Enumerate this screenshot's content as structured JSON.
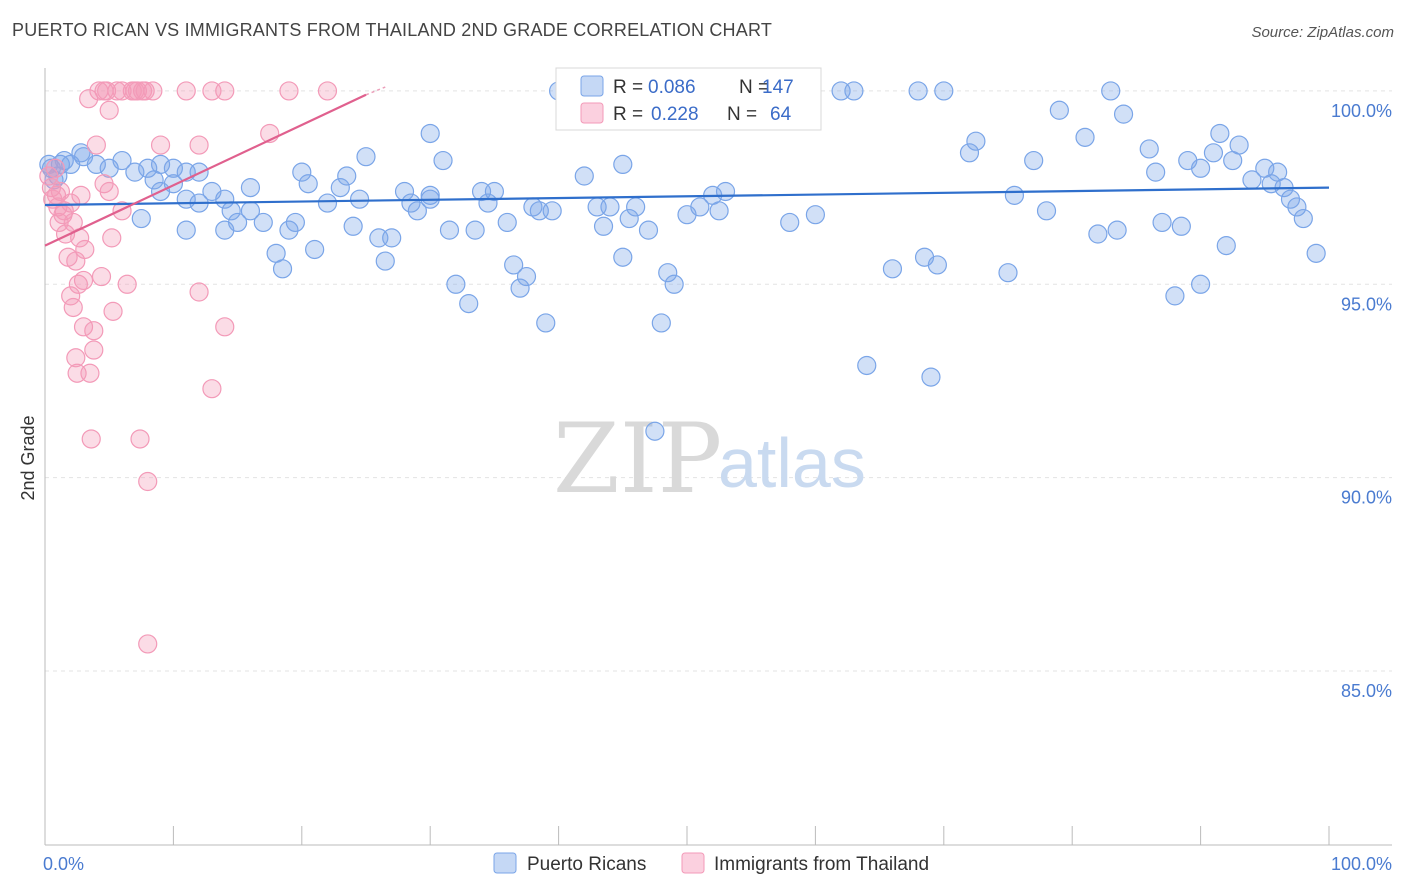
{
  "title": "PUERTO RICAN VS IMMIGRANTS FROM THAILAND 2ND GRADE CORRELATION CHART",
  "source": "Source: ZipAtlas.com",
  "watermark": {
    "zip": "ZIP",
    "atlas": "atlas"
  },
  "chart_data": {
    "type": "scatter",
    "ylabel": "2nd Grade",
    "xlim": [
      0,
      100
    ],
    "ylim": [
      80.5,
      100.8
    ],
    "x_tick_labels": [
      {
        "v": 0,
        "label": "0.0%"
      },
      {
        "v": 100,
        "label": "100.0%"
      }
    ],
    "y_tick_labels": [
      {
        "v": 100,
        "label": "100.0%"
      },
      {
        "v": 95,
        "label": "95.0%"
      },
      {
        "v": 90,
        "label": "90.0%"
      },
      {
        "v": 85,
        "label": "85.0%"
      }
    ],
    "legend": [
      {
        "r_label": "R = ",
        "r": "0.086",
        "n_label": "N = ",
        "n": "147"
      },
      {
        "r_label": "R = ",
        "r": "0.228",
        "n_label": "N = ",
        "n": "64"
      }
    ],
    "series": [
      {
        "name": "Puerto Ricans",
        "color": "#7aa5e8",
        "line_color": "#2f6fcc",
        "trend": {
          "x0": 0,
          "y0": 97.05,
          "x1": 100,
          "y1": 97.5
        },
        "points": [
          [
            0.5,
            98
          ],
          [
            1,
            97.8
          ],
          [
            1.5,
            98.2
          ],
          [
            2,
            98.1
          ],
          [
            2.8,
            98.4
          ],
          [
            3,
            98.3
          ],
          [
            4,
            98.1
          ],
          [
            5,
            98
          ],
          [
            6,
            98.2
          ],
          [
            7,
            97.9
          ],
          [
            8,
            98
          ],
          [
            9,
            98.1
          ],
          [
            10,
            98
          ],
          [
            11,
            97.9
          ],
          [
            0.3,
            98.1
          ],
          [
            0.7,
            97.7
          ],
          [
            1.2,
            98.1
          ],
          [
            7.5,
            96.7
          ],
          [
            8.5,
            97.7
          ],
          [
            9,
            97.4
          ],
          [
            10,
            97.6
          ],
          [
            11,
            97.2
          ],
          [
            12,
            97.1
          ],
          [
            11,
            96.4
          ],
          [
            12,
            97.9
          ],
          [
            13,
            97.4
          ],
          [
            14,
            97.2
          ],
          [
            14.5,
            96.9
          ],
          [
            14,
            96.4
          ],
          [
            15,
            96.6
          ],
          [
            16,
            96.9
          ],
          [
            16,
            97.5
          ],
          [
            17,
            96.6
          ],
          [
            18,
            95.8
          ],
          [
            18.5,
            95.4
          ],
          [
            19,
            96.4
          ],
          [
            19.5,
            96.6
          ],
          [
            20,
            97.9
          ],
          [
            20.5,
            97.6
          ],
          [
            21,
            95.9
          ],
          [
            22,
            97.1
          ],
          [
            23,
            97.5
          ],
          [
            23.5,
            97.8
          ],
          [
            24,
            96.5
          ],
          [
            24.5,
            97.2
          ],
          [
            25,
            98.3
          ],
          [
            26,
            96.2
          ],
          [
            26.5,
            95.6
          ],
          [
            27,
            96.2
          ],
          [
            28,
            97.4
          ],
          [
            28.5,
            97.1
          ],
          [
            29,
            96.9
          ],
          [
            30,
            97.2
          ],
          [
            30,
            97.3
          ],
          [
            31,
            98.2
          ],
          [
            31.5,
            96.4
          ],
          [
            32,
            95
          ],
          [
            33,
            94.5
          ],
          [
            33.5,
            96.4
          ],
          [
            34,
            97.4
          ],
          [
            34.5,
            97.1
          ],
          [
            35,
            97.4
          ],
          [
            36,
            96.6
          ],
          [
            36.5,
            95.5
          ],
          [
            37,
            94.9
          ],
          [
            37.5,
            95.2
          ],
          [
            38,
            97
          ],
          [
            38.5,
            96.9
          ],
          [
            39,
            94
          ],
          [
            39.5,
            96.9
          ],
          [
            40,
            100
          ],
          [
            41,
            99.4
          ],
          [
            42,
            97.8
          ],
          [
            43,
            97
          ],
          [
            43.5,
            96.5
          ],
          [
            44,
            97
          ],
          [
            45,
            95.7
          ],
          [
            45.5,
            96.7
          ],
          [
            46,
            97
          ],
          [
            47,
            96.4
          ],
          [
            48,
            94
          ],
          [
            48.5,
            95.3
          ],
          [
            49,
            95
          ],
          [
            50,
            96.8
          ],
          [
            51,
            97
          ],
          [
            52,
            97.3
          ],
          [
            52.5,
            96.9
          ],
          [
            53,
            97.4
          ],
          [
            55,
            100
          ],
          [
            57,
            99.7
          ],
          [
            60,
            96.8
          ],
          [
            62,
            100
          ],
          [
            63,
            100
          ],
          [
            64,
            92.9
          ],
          [
            66,
            95.4
          ],
          [
            68,
            100
          ],
          [
            68.5,
            95.7
          ],
          [
            69,
            92.6
          ],
          [
            69.5,
            95.5
          ],
          [
            70,
            100
          ],
          [
            72,
            98.4
          ],
          [
            72.5,
            98.7
          ],
          [
            75,
            95.3
          ],
          [
            75.5,
            97.3
          ],
          [
            77,
            98.2
          ],
          [
            78,
            96.9
          ],
          [
            79,
            99.5
          ],
          [
            81,
            98.8
          ],
          [
            82,
            96.3
          ],
          [
            83,
            100
          ],
          [
            83.5,
            96.4
          ],
          [
            84,
            99.4
          ],
          [
            86,
            98.5
          ],
          [
            86.5,
            97.9
          ],
          [
            87,
            96.6
          ],
          [
            88,
            94.7
          ],
          [
            88.5,
            96.5
          ],
          [
            89,
            98.2
          ],
          [
            90,
            95
          ],
          [
            90,
            98
          ],
          [
            91,
            98.4
          ],
          [
            91.5,
            98.9
          ],
          [
            92,
            96
          ],
          [
            92.5,
            98.2
          ],
          [
            93,
            98.6
          ],
          [
            94,
            97.7
          ],
          [
            95,
            98
          ],
          [
            95.5,
            97.6
          ],
          [
            96,
            97.9
          ],
          [
            96.5,
            97.5
          ],
          [
            97,
            97.2
          ],
          [
            97.5,
            97
          ],
          [
            98,
            96.7
          ],
          [
            99,
            95.8
          ],
          [
            47.5,
            91.2
          ],
          [
            45,
            98.1
          ],
          [
            30,
            98.9
          ],
          [
            58,
            96.6
          ]
        ]
      },
      {
        "name": "Immigrants from Thailand",
        "color": "#f39ab8",
        "line_color": "#e0608e",
        "trend": {
          "x0": 0,
          "y0": 96,
          "x1": 25,
          "y1": 99.9
        },
        "trend_dash": {
          "x0": 25,
          "y0": 99.9,
          "x1": 26.5,
          "y1": 100.1
        },
        "points": [
          [
            0.3,
            97.8
          ],
          [
            0.5,
            97.5
          ],
          [
            0.6,
            97.2
          ],
          [
            0.8,
            98
          ],
          [
            1,
            97
          ],
          [
            1.2,
            97.4
          ],
          [
            1.4,
            96.8
          ],
          [
            1.6,
            96.3
          ],
          [
            1.8,
            95.7
          ],
          [
            2,
            97.1
          ],
          [
            2.2,
            96.6
          ],
          [
            2.4,
            95.6
          ],
          [
            2,
            94.7
          ],
          [
            2.2,
            94.4
          ],
          [
            2.6,
            95
          ],
          [
            2.8,
            97.3
          ],
          [
            3,
            95.1
          ],
          [
            3,
            93.9
          ],
          [
            2.4,
            93.1
          ],
          [
            2.5,
            92.7
          ],
          [
            3.4,
            99.8
          ],
          [
            3.5,
            92.7
          ],
          [
            3.6,
            91
          ],
          [
            3.8,
            93.3
          ],
          [
            3.8,
            93.8
          ],
          [
            4,
            98.6
          ],
          [
            4.2,
            100
          ],
          [
            4.4,
            95.2
          ],
          [
            4.6,
            100
          ],
          [
            4.8,
            100
          ],
          [
            5,
            99.5
          ],
          [
            5,
            97.4
          ],
          [
            5.2,
            96.2
          ],
          [
            5.6,
            100
          ],
          [
            6,
            100
          ],
          [
            6,
            96.9
          ],
          [
            6.4,
            95
          ],
          [
            6.8,
            100
          ],
          [
            7,
            100
          ],
          [
            7.2,
            100
          ],
          [
            7.4,
            91
          ],
          [
            7.6,
            100
          ],
          [
            7.8,
            100
          ],
          [
            8,
            89.9
          ],
          [
            8,
            85.7
          ],
          [
            8.4,
            100
          ],
          [
            9,
            98.6
          ],
          [
            11,
            100
          ],
          [
            12,
            98.6
          ],
          [
            12,
            94.8
          ],
          [
            13,
            100
          ],
          [
            13,
            92.3
          ],
          [
            14,
            100
          ],
          [
            14,
            93.9
          ],
          [
            17.5,
            98.9
          ],
          [
            19,
            100
          ],
          [
            22,
            100
          ],
          [
            1.5,
            96.9
          ],
          [
            0.9,
            97.3
          ],
          [
            2.7,
            96.2
          ],
          [
            3.1,
            95.9
          ],
          [
            4.6,
            97.6
          ],
          [
            1.1,
            96.6
          ],
          [
            5.3,
            94.3
          ]
        ]
      }
    ]
  }
}
